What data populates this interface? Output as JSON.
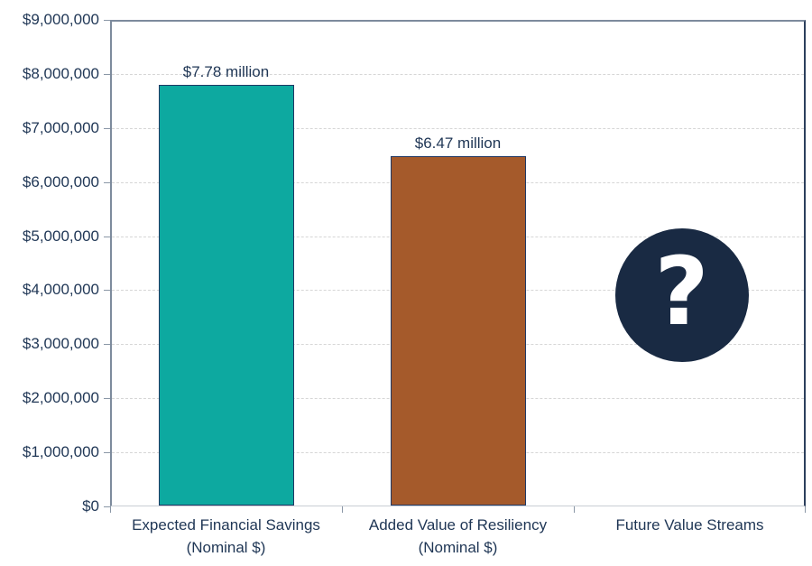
{
  "chart_data": {
    "type": "bar",
    "title": "",
    "xlabel": "",
    "ylabel": "",
    "categories": [
      "Expected Financial Savings\n(Nominal $)",
      "Added Value of Resiliency\n(Nominal $)",
      "Future Value Streams"
    ],
    "values": [
      7780000,
      6470000,
      null
    ],
    "data_labels": [
      "$7.78 million",
      "$6.47 million",
      null
    ],
    "bar_colors": [
      "#0da9a0",
      "#a55a2b"
    ],
    "bar_border_color": "#1f3864",
    "ylim": [
      0,
      9000000
    ],
    "ytick_step": 1000000,
    "ytick_labels": [
      "$0",
      "$1,000,000",
      "$2,000,000",
      "$3,000,000",
      "$4,000,000",
      "$5,000,000",
      "$6,000,000",
      "$7,000,000",
      "$8,000,000",
      "$9,000,000"
    ],
    "grid": true,
    "gridline_color": "#d6d6d6",
    "legend": false,
    "placeholder_icon": {
      "category_index": 2,
      "name": "question-mark-icon",
      "glyph": "?",
      "circle_color": "#192a43",
      "glyph_color": "#ffffff"
    },
    "text_color": "#1f3655"
  }
}
